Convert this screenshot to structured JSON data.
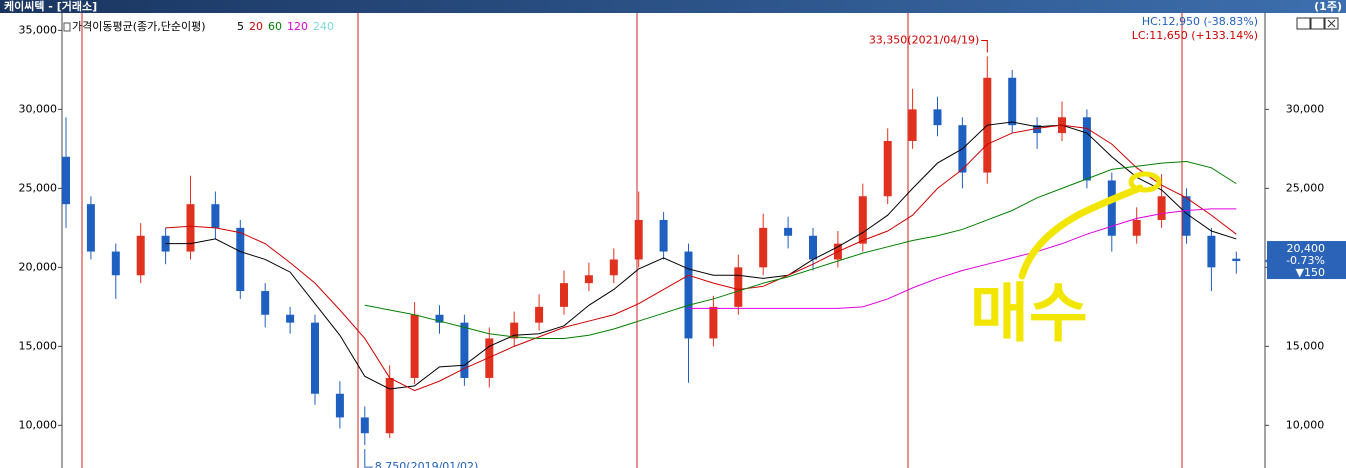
{
  "chart_data": {
    "type": "candlestick",
    "title": "케이씨텍 - [거래소]",
    "period": "(1주)",
    "legend_title": "가격이동평균(종가,단순이평)",
    "open": [
      27000,
      24000,
      21000,
      19500,
      22000,
      21000,
      24000,
      22500,
      18500,
      17000,
      16500,
      12000,
      10500,
      9500,
      13000,
      17000,
      16500,
      13000,
      15500,
      16500,
      17500,
      19000,
      19500,
      20500,
      23000,
      21000,
      15500,
      17500,
      20000,
      22500,
      22000,
      20500,
      21500,
      24500,
      28000,
      30000,
      29000,
      26000,
      32000,
      29000,
      28500,
      29500,
      25500,
      22000,
      23000,
      24500,
      22000,
      20550
    ],
    "high": [
      29500,
      24500,
      21500,
      22800,
      22500,
      25800,
      24800,
      23000,
      19000,
      17500,
      17000,
      12800,
      11200,
      13800,
      17800,
      17600,
      17000,
      16200,
      17200,
      18300,
      19800,
      20300,
      21200,
      24800,
      23500,
      21500,
      18200,
      20800,
      23400,
      23200,
      22500,
      22300,
      25300,
      28800,
      31300,
      30800,
      29500,
      33350,
      32500,
      29500,
      30500,
      30000,
      26000,
      23800,
      25900,
      25000,
      22500,
      21000
    ],
    "low": [
      22500,
      20500,
      18000,
      19000,
      20200,
      20500,
      21800,
      18000,
      16200,
      15800,
      11300,
      9800,
      8750,
      9200,
      12600,
      15800,
      12500,
      12400,
      15000,
      16000,
      17000,
      18500,
      19000,
      20000,
      20500,
      12700,
      15000,
      17000,
      19500,
      21200,
      19800,
      20000,
      21000,
      24000,
      27500,
      28300,
      25000,
      25300,
      28500,
      27500,
      28000,
      25000,
      21000,
      21500,
      22500,
      21500,
      18500,
      19600
    ],
    "close": [
      24000,
      21000,
      19500,
      22000,
      21000,
      24000,
      22500,
      18500,
      17000,
      16500,
      12000,
      10500,
      9500,
      13000,
      17000,
      16500,
      13000,
      15500,
      16500,
      17500,
      19000,
      19500,
      20500,
      23000,
      21000,
      15500,
      17500,
      20000,
      22500,
      22000,
      20500,
      21500,
      24500,
      28000,
      30000,
      29000,
      26000,
      32000,
      29000,
      28500,
      29500,
      25500,
      22000,
      23000,
      24500,
      22000,
      20000,
      20400
    ],
    "up_color": "#e0301e",
    "down_color": "#1f5fbf",
    "series": [
      {
        "name": "5",
        "color": "#000000",
        "values": [
          null,
          null,
          null,
          null,
          21500,
          21500,
          21800,
          21000,
          20500,
          19700,
          17700,
          15700,
          13100,
          12300,
          12500,
          13700,
          13800,
          15000,
          15700,
          15800,
          16300,
          17600,
          18600,
          19900,
          20600,
          19900,
          19500,
          19500,
          19300,
          19500,
          20500,
          21300,
          22200,
          23300,
          25000,
          26600,
          27500,
          29000,
          29200,
          28900,
          29000,
          28500,
          27000,
          25700,
          24900,
          23400,
          22300,
          21800
        ]
      },
      {
        "name": "20",
        "color": "#d00000",
        "values": [
          null,
          null,
          null,
          null,
          22500,
          22600,
          22500,
          22200,
          21500,
          20300,
          19000,
          17300,
          15500,
          13000,
          12200,
          12800,
          13600,
          14300,
          15000,
          15600,
          16200,
          16600,
          17000,
          17700,
          18600,
          19500,
          19000,
          18600,
          18800,
          19500,
          20200,
          21000,
          21700,
          22300,
          23300,
          25000,
          26200,
          27800,
          28500,
          28800,
          29000,
          28800,
          27800,
          26300,
          25200,
          24400,
          23300,
          22100
        ]
      },
      {
        "name": "60",
        "color": "#008000",
        "values": [
          null,
          null,
          null,
          null,
          null,
          null,
          null,
          null,
          null,
          null,
          null,
          null,
          17600,
          17300,
          17000,
          16600,
          16200,
          15800,
          15600,
          15500,
          15500,
          15700,
          16100,
          16600,
          17100,
          17600,
          18000,
          18500,
          19000,
          19400,
          19900,
          20400,
          20900,
          21300,
          21700,
          22000,
          22400,
          23000,
          23600,
          24400,
          25000,
          25600,
          26200,
          26400,
          26600,
          26700,
          26300,
          25300
        ]
      },
      {
        "name": "120",
        "color": "#e000e0",
        "values": [
          null,
          null,
          null,
          null,
          null,
          null,
          null,
          null,
          null,
          null,
          null,
          null,
          null,
          null,
          null,
          null,
          null,
          null,
          null,
          null,
          null,
          null,
          null,
          null,
          null,
          17400,
          17400,
          17400,
          17400,
          17400,
          17400,
          17400,
          17500,
          18000,
          18700,
          19300,
          19800,
          20200,
          20600,
          21000,
          21500,
          22100,
          22600,
          23100,
          23400,
          23600,
          23700,
          23700
        ]
      },
      {
        "name": "240",
        "color": "#7fd8d8",
        "values": [
          null,
          null,
          null,
          null,
          null,
          null,
          null,
          null,
          null,
          null,
          null,
          null,
          null,
          null,
          null,
          null,
          null,
          null,
          null,
          null,
          null,
          null,
          null,
          null,
          null,
          null,
          null,
          null,
          null,
          null,
          null,
          null,
          null,
          null,
          null,
          null,
          null,
          null,
          null,
          null,
          null,
          null,
          null,
          null,
          null,
          null,
          null,
          null
        ]
      }
    ],
    "ylim": [
      7300,
      36100
    ],
    "yticks": [
      {
        "value": 10000,
        "label": "10,000"
      },
      {
        "value": 15000,
        "label": "15,000"
      },
      {
        "value": 20000,
        "label": "20,000"
      },
      {
        "value": 25000,
        "label": "25,000"
      },
      {
        "value": 30000,
        "label": "30,000"
      },
      {
        "value": 35000,
        "label": "35,000"
      }
    ],
    "y2lim": [
      7300,
      36100
    ],
    "y2ticks": [
      {
        "value": 10000,
        "label": "10,000"
      },
      {
        "value": 15000,
        "label": "15,000"
      },
      {
        "value": 20000,
        "label": "20,000"
      },
      {
        "value": 25000,
        "label": "25,000"
      },
      {
        "value": 30000,
        "label": "30,000"
      }
    ],
    "high_label": "33,350(2021/04/19)",
    "low_label": "8,750(2019/01/02)",
    "hc_label": "HC:12,950 (-38.83%)",
    "lc_label": "LC:11,650 (+133.14%)",
    "current_price": {
      "value": 20400,
      "label": "20,400"
    },
    "change_pct": "-0.73%",
    "change": "▼150",
    "annotation": "매수"
  }
}
